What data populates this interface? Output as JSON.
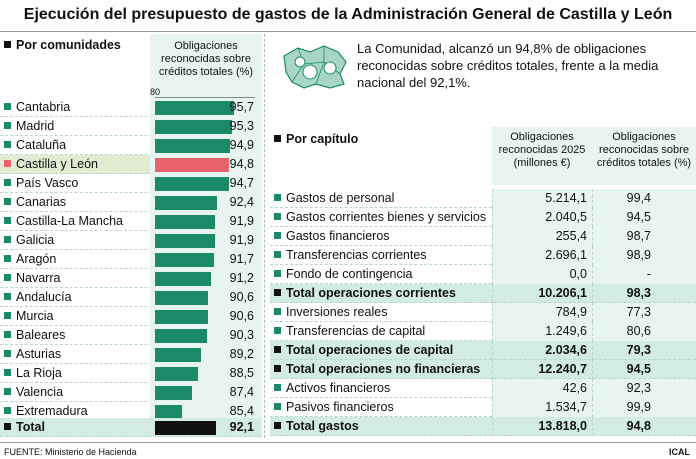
{
  "title": "Ejecución del presupuesto de gastos de la Administración General de Castilla y León",
  "note": "La Comunidad, alcanzó un 94,8% de obligaciones reconocidas sobre créditos totales, frente a la media nacional del 92,1%.",
  "source": "FUENTE: Ministerio de Hacienda",
  "credit": "ICAL",
  "colors": {
    "bar": "#1a8a6a",
    "highlight": "#e8636c",
    "total": "#111111"
  },
  "chart_data": [
    {
      "type": "bar",
      "title": "Por comunidades",
      "ylabel": "Obligaciones reconocidas sobre créditos totales (%)",
      "axis_min_label": "80",
      "ylim": [
        80,
        100
      ],
      "categories": [
        "Cantabria",
        "Madrid",
        "Cataluña",
        "Castilla y León",
        "País Vasco",
        "Canarias",
        "Castilla-La Mancha",
        "Galicia",
        "Aragón",
        "Navarra",
        "Andalucía",
        "Murcia",
        "Baleares",
        "Asturias",
        "La Rioja",
        "Valencia",
        "Extremadura",
        "Total"
      ],
      "values": [
        95.7,
        95.3,
        94.9,
        94.8,
        94.7,
        92.4,
        91.9,
        91.9,
        91.7,
        91.2,
        90.6,
        90.6,
        90.3,
        89.2,
        88.5,
        87.4,
        85.4,
        92.1
      ],
      "labels": [
        "95,7",
        "95,3",
        "94,9",
        "94,8",
        "94,7",
        "92,4",
        "91,9",
        "91,9",
        "91,7",
        "91,2",
        "90,6",
        "90,6",
        "90,3",
        "89,2",
        "88,5",
        "87,4",
        "85,4",
        "92,1"
      ]
    },
    {
      "type": "table",
      "title": "Por capítulo",
      "columns": [
        "Obligaciones reconocidas 2025 (millones €)",
        "Obligaciones reconocidas sobre créditos totales (%)"
      ],
      "rows": [
        {
          "label": "Gastos de personal",
          "amount": "5.214,1",
          "pct": "99,4",
          "total": false
        },
        {
          "label": "Gastos corrientes bienes y servicios",
          "amount": "2.040,5",
          "pct": "94,5",
          "total": false
        },
        {
          "label": "Gastos financieros",
          "amount": "255,4",
          "pct": "98,7",
          "total": false
        },
        {
          "label": "Transferencias corrientes",
          "amount": "2.696,1",
          "pct": "98,9",
          "total": false
        },
        {
          "label": "Fondo de contingencia",
          "amount": "0,0",
          "pct": "-",
          "total": false
        },
        {
          "label": "Total operaciones corrientes",
          "amount": "10.206,1",
          "pct": "98,3",
          "total": true
        },
        {
          "label": "Inversiones reales",
          "amount": "784,9",
          "pct": "77,3",
          "total": false
        },
        {
          "label": "Transferencias de capital",
          "amount": "1.249,6",
          "pct": "80,6",
          "total": false
        },
        {
          "label": "Total operaciones de capital",
          "amount": "2.034,6",
          "pct": "79,3",
          "total": true
        },
        {
          "label": "Total operaciones no financieras",
          "amount": "12.240,7",
          "pct": "94,5",
          "total": true
        },
        {
          "label": "Activos financieros",
          "amount": "42,6",
          "pct": "92,3",
          "total": false
        },
        {
          "label": "Pasivos financieros",
          "amount": "1.534,7",
          "pct": "99,9",
          "total": false
        },
        {
          "label": "Total gastos",
          "amount": "13.818,0",
          "pct": "94,8",
          "total": true
        }
      ]
    }
  ]
}
